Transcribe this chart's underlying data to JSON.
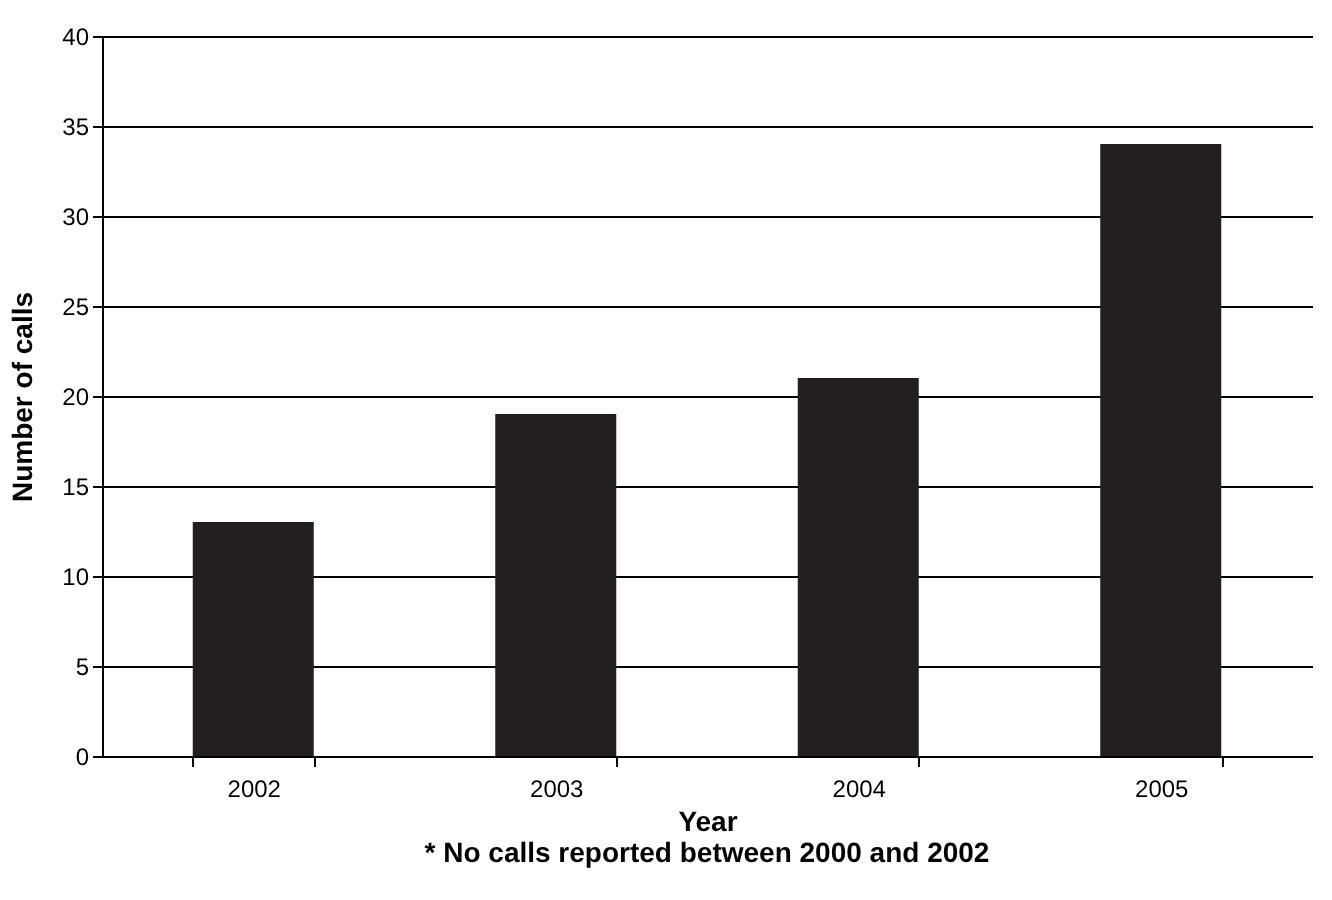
{
  "chart_data": {
    "type": "bar",
    "xlabel": "Year",
    "ylabel": "Number of calls",
    "categories": [
      "2002",
      "2003",
      "2004",
      "2005"
    ],
    "values": [
      13,
      19,
      21,
      34
    ],
    "color": "#231f20",
    "ylim": [
      0,
      40
    ],
    "yticks": [
      0,
      5,
      10,
      15,
      20,
      25,
      30,
      35,
      40
    ],
    "grid": "y",
    "annotations": [
      "* No calls reported between 2000 and 2002"
    ]
  }
}
